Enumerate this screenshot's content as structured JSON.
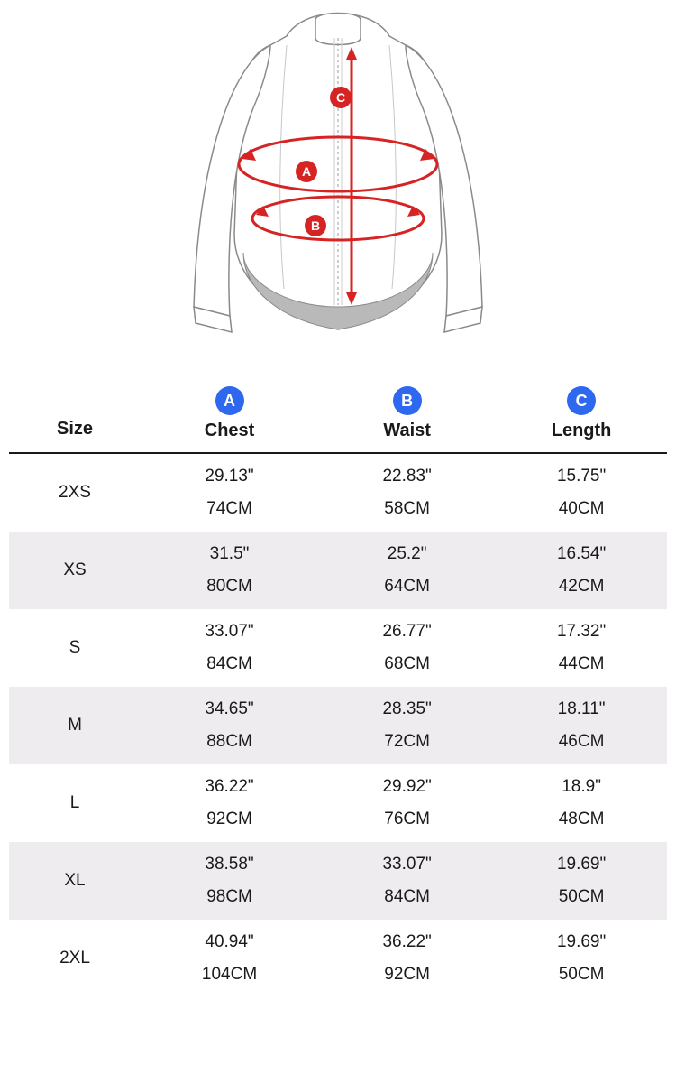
{
  "colors": {
    "badge_bg": "#2d68ee",
    "badge_fg": "#ffffff",
    "row_alt_bg": "#efecef",
    "border": "#1a1a1a",
    "text": "#1a1a1a",
    "diagram_stroke": "#8a8a8a",
    "diagram_fill": "#ffffff",
    "diagram_hem": "#b9b9b9",
    "measure_red": "#d62424",
    "measure_label_bg": "#d62424",
    "measure_label_fg": "#ffffff"
  },
  "header": {
    "size_label": "Size",
    "columns": [
      {
        "badge": "A",
        "label": "Chest"
      },
      {
        "badge": "B",
        "label": "Waist"
      },
      {
        "badge": "C",
        "label": "Length"
      }
    ]
  },
  "rows": [
    {
      "size": "2XS",
      "chest_in": "29.13\"",
      "chest_cm": "74CM",
      "waist_in": "22.83\"",
      "waist_cm": "58CM",
      "length_in": "15.75\"",
      "length_cm": "40CM"
    },
    {
      "size": "XS",
      "chest_in": "31.5\"",
      "chest_cm": "80CM",
      "waist_in": "25.2\"",
      "waist_cm": "64CM",
      "length_in": "16.54\"",
      "length_cm": "42CM"
    },
    {
      "size": "S",
      "chest_in": "33.07\"",
      "chest_cm": "84CM",
      "waist_in": "26.77\"",
      "waist_cm": "68CM",
      "length_in": "17.32\"",
      "length_cm": "44CM"
    },
    {
      "size": "M",
      "chest_in": "34.65\"",
      "chest_cm": "88CM",
      "waist_in": "28.35\"",
      "waist_cm": "72CM",
      "length_in": "18.11\"",
      "length_cm": "46CM"
    },
    {
      "size": "L",
      "chest_in": "36.22\"",
      "chest_cm": "92CM",
      "waist_in": "29.92\"",
      "waist_cm": "76CM",
      "length_in": "18.9\"",
      "length_cm": "48CM"
    },
    {
      "size": "XL",
      "chest_in": "38.58\"",
      "chest_cm": "98CM",
      "waist_in": "33.07\"",
      "waist_cm": "84CM",
      "length_in": "19.69\"",
      "length_cm": "50CM"
    },
    {
      "size": "2XL",
      "chest_in": "40.94\"",
      "chest_cm": "104CM",
      "waist_in": "36.22\"",
      "waist_cm": "92CM",
      "length_in": "19.69\"",
      "length_cm": "50CM"
    }
  ],
  "diagram": {
    "labels": {
      "chest": "A",
      "waist": "B",
      "length": "C"
    }
  }
}
